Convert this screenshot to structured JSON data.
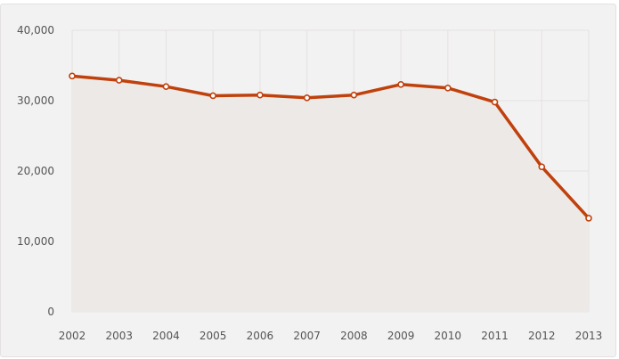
{
  "chart_data": {
    "type": "area",
    "title": "",
    "xlabel": "",
    "ylabel": "",
    "categories": [
      "2002",
      "2003",
      "2004",
      "2005",
      "2006",
      "2007",
      "2008",
      "2009",
      "2010",
      "2011",
      "2012",
      "2013"
    ],
    "series": [
      {
        "values": [
          33500,
          32900,
          32000,
          30700,
          30800,
          30400,
          30800,
          32300,
          31800,
          29800,
          20600,
          13300
        ]
      }
    ],
    "ylim": [
      0,
      40000
    ],
    "y_ticks": [
      0,
      10000,
      20000,
      30000,
      40000
    ],
    "y_tick_labels": [
      "0",
      "10,000",
      "20,000",
      "30,000",
      "40,000"
    ],
    "grid": true,
    "legend": "none",
    "colors": {
      "line": "#c0410c",
      "fill": "#ece9e7",
      "grid": "#e4e1e0",
      "marker_fill": "#ffffff"
    }
  }
}
